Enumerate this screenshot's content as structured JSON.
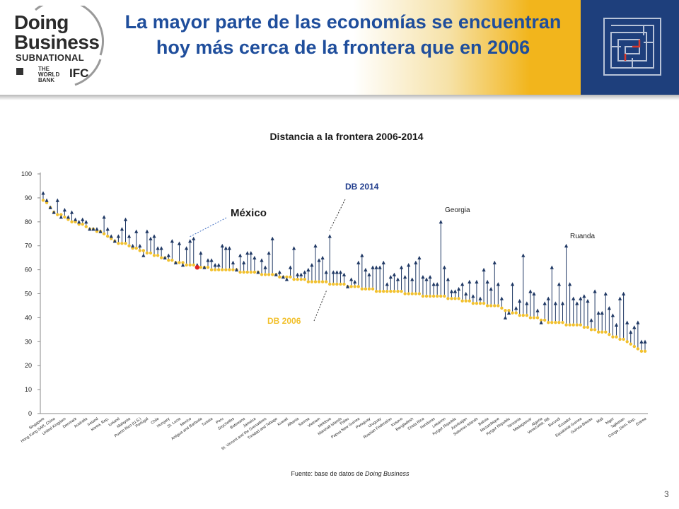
{
  "slide": {
    "title": "La mayor parte de las economías se encuentran hoy más cerca de la frontera que en 2006",
    "page_number": "3",
    "source_prefix": "Fuente: base de datos de ",
    "source_italic": "Doing Business"
  },
  "logo": {
    "line1": "Doing",
    "line2": "Business",
    "line3": "SUBNATIONAL",
    "bank": "THE WORLD BANK",
    "ifc": "IFC"
  },
  "colors": {
    "header_blue": "#1e3f7c",
    "header_gold": "#f2b51c",
    "title_blue": "#1f4e9c",
    "db2014": "#1f3864",
    "db2006": "#f2c12e",
    "mexico": "#e02020"
  },
  "chart_data": {
    "type": "scatter",
    "title": "Distancia a la frontera 2006-2014",
    "ylim": [
      0,
      100
    ],
    "yticks": [
      0,
      10,
      20,
      30,
      40,
      50,
      60,
      70,
      80,
      90,
      100
    ],
    "grid": false,
    "series": [
      {
        "name": "DB 2014",
        "values": [
          92,
          89,
          86,
          84,
          89,
          82,
          85,
          82,
          84,
          81,
          80,
          81,
          80,
          77,
          77,
          77,
          76,
          82,
          77,
          74,
          72,
          74,
          77,
          81,
          74,
          70,
          76,
          70,
          66,
          76,
          73,
          74,
          69,
          69,
          65,
          66,
          72,
          63,
          71,
          62,
          69,
          72,
          73,
          62,
          67,
          61,
          64,
          64,
          62,
          62,
          70,
          69,
          69,
          63,
          60,
          66,
          63,
          67,
          67,
          65,
          59,
          64,
          61,
          67,
          73,
          58,
          59,
          57,
          56,
          61,
          69,
          58,
          58,
          59,
          60,
          62,
          70,
          64,
          65,
          59,
          74,
          59,
          59,
          59,
          58,
          53,
          56,
          55,
          63,
          66,
          60,
          58,
          61,
          61,
          61,
          63,
          54,
          57,
          58,
          56,
          61,
          57,
          62,
          56,
          63,
          65,
          57,
          56,
          57,
          54,
          54,
          80,
          61,
          56,
          51,
          51,
          52,
          54,
          50,
          55,
          49,
          55,
          48,
          60,
          55,
          52,
          63,
          54,
          48,
          40,
          42,
          54,
          44,
          47,
          66,
          46,
          51,
          50,
          43,
          38,
          46,
          48,
          61,
          46,
          54,
          46,
          70,
          54,
          48,
          46,
          48,
          49,
          47,
          39,
          51,
          42,
          42,
          50,
          44,
          41,
          37,
          48,
          50,
          38,
          34,
          36,
          38,
          30,
          30
        ]
      },
      {
        "name": "DB 2006",
        "values": [
          89,
          88,
          86,
          84,
          83,
          83,
          82,
          81,
          80,
          80,
          79,
          79,
          78,
          77,
          77,
          76,
          76,
          75,
          74,
          73,
          72,
          71,
          71,
          71,
          70,
          69,
          69,
          68,
          68,
          67,
          67,
          66,
          66,
          65,
          65,
          64,
          64,
          63,
          63,
          63,
          62,
          62,
          62,
          61,
          61,
          61,
          61,
          60,
          60,
          60,
          60,
          60,
          60,
          60,
          60,
          59,
          59,
          59,
          59,
          59,
          59,
          58,
          58,
          58,
          58,
          58,
          57,
          57,
          57,
          57,
          56,
          56,
          56,
          56,
          55,
          55,
          55,
          55,
          55,
          55,
          54,
          54,
          54,
          54,
          54,
          53,
          53,
          53,
          53,
          52,
          52,
          52,
          52,
          51,
          51,
          51,
          51,
          51,
          51,
          51,
          51,
          50,
          50,
          50,
          50,
          50,
          49,
          49,
          49,
          49,
          49,
          49,
          49,
          48,
          48,
          48,
          48,
          47,
          47,
          47,
          46,
          46,
          46,
          46,
          45,
          45,
          45,
          45,
          44,
          43,
          43,
          42,
          42,
          41,
          41,
          41,
          40,
          40,
          40,
          39,
          39,
          38,
          38,
          38,
          38,
          38,
          37,
          37,
          37,
          37,
          37,
          36,
          36,
          35,
          35,
          34,
          34,
          34,
          33,
          32,
          32,
          31,
          31,
          30,
          29,
          28,
          27,
          26,
          26
        ]
      }
    ],
    "visible_tick_labels": [
      "Singapore",
      "Hong Kong SAR, China",
      "United Kingdom",
      "Denmark",
      "Australia",
      "Ireland",
      "Korea, Rep.",
      "Iceland",
      "Malaysia",
      "Puerto Rico (U.S.)",
      "Portugal",
      "Chile",
      "Hungary",
      "St. Lucia",
      "Mexico",
      "Antigua and Barbuda",
      "Tunisia",
      "Peru",
      "Seychelles",
      "Botswana",
      "Jamaica",
      "St. Vincent and the Grenadines",
      "Trinidad and Tobago",
      "Kuwait",
      "Albania",
      "Samoa",
      "Vietnam",
      "Moldova",
      "Marshall Islands",
      "Palau",
      "Papua New Guinea",
      "Paraguay",
      "Uruguay",
      "Russian Federation",
      "Kosovo",
      "Bangladesh",
      "Costa Rica",
      "Honduras",
      "Lebanon",
      "Kyrgyz Republic",
      "Azerbaijan",
      "Solomon Islands",
      "Bolivia",
      "Mozambique",
      "Kyrgyz Republic",
      "Tanzania",
      "Madagascar",
      "Algeria",
      "Venezuela, RB",
      "Burundi",
      "Ecuador",
      "Equatorial Guinea",
      "Guinea-Bissau",
      "Mali",
      "Niger",
      "Tajikistan",
      "Congo, Dem. Rep.",
      "Eritrea"
    ],
    "annotations": [
      "DB 2014",
      "DB 2006",
      "México",
      "Georgia",
      "Ruanda"
    ],
    "highlight_index": 43
  }
}
